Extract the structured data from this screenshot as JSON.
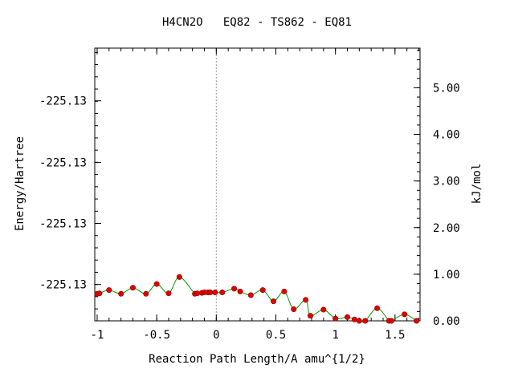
{
  "chart_data": {
    "type": "line",
    "title": "H4CN2O   EQ82 - TS862 - EQ81",
    "xlabel": "Reaction Path Length/A amu^{1/2}",
    "ylabel_left": "Energy/Hartree",
    "ylabel_right": "kJ/mol",
    "xlim": [
      -1.02,
      1.71
    ],
    "ylim_kjmol": [
      0.0,
      5.85
    ],
    "x_ticks": [
      -1,
      -0.5,
      0,
      0.5,
      1,
      1.5
    ],
    "x_tick_labels": [
      "-1",
      "-0.5",
      "0",
      "0.5",
      "1",
      "1.5"
    ],
    "left_ticks_kjmol": [
      0.78,
      2.09,
      3.4,
      4.72
    ],
    "left_tick_labels": [
      "-225.13",
      "-225.13",
      "-225.13",
      "-225.13"
    ],
    "right_ticks": [
      0,
      1,
      2,
      3,
      4,
      5
    ],
    "right_tick_labels": [
      "0.00",
      "1.00",
      "2.00",
      "3.00",
      "4.00",
      "5.00"
    ],
    "vline_x": 0,
    "grid": false,
    "colors": {
      "line": "#00a000",
      "marker": "#e00000",
      "vline": "#999999",
      "axis": "#000000"
    },
    "series": [
      {
        "x": [
          -1.0,
          -0.98,
          -0.9,
          -0.8,
          -0.7,
          -0.59,
          -0.5,
          -0.4,
          -0.31,
          -0.18,
          -0.16,
          -0.12,
          -0.1,
          -0.07,
          -0.05,
          -0.01,
          0.05,
          0.15,
          0.2,
          0.29,
          0.39,
          0.48,
          0.57,
          0.65,
          0.75,
          0.79,
          0.9,
          1.0,
          1.1,
          1.16,
          1.2,
          1.25,
          1.35,
          1.45,
          1.47,
          1.58,
          1.68
        ],
        "y": [
          0.58,
          0.59,
          0.66,
          0.58,
          0.71,
          0.58,
          0.79,
          0.59,
          0.94,
          0.58,
          0.59,
          0.6,
          0.61,
          0.61,
          0.61,
          0.61,
          0.61,
          0.69,
          0.63,
          0.55,
          0.66,
          0.42,
          0.63,
          0.25,
          0.45,
          0.11,
          0.24,
          0.05,
          0.08,
          0.03,
          0.0,
          0.0,
          0.27,
          0.0,
          0.0,
          0.14,
          0.0
        ]
      }
    ]
  }
}
